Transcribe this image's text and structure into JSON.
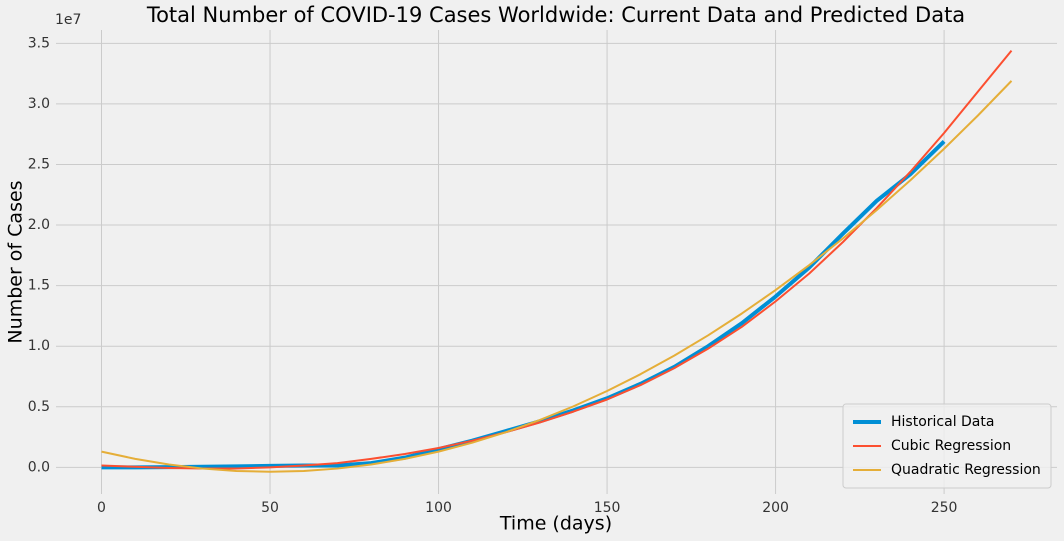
{
  "chart_data": {
    "type": "line",
    "title": "Total Number of COVID-19 Cases Worldwide: Current Data and Predicted Data",
    "x_label": "Time (days)",
    "y_label": "Number of Cases",
    "y_offset_label": "1e7",
    "x": [
      0,
      10,
      20,
      30,
      40,
      50,
      60,
      70,
      80,
      90,
      100,
      110,
      120,
      130,
      140,
      150,
      160,
      170,
      180,
      190,
      200,
      210,
      220,
      230,
      240,
      250,
      260,
      270
    ],
    "series": [
      {
        "name": "Historical Data",
        "color": "#008fd5",
        "width": 4,
        "values": [
          0,
          0,
          20000,
          50000,
          80000,
          120000,
          150000,
          150000,
          350000,
          800000,
          1500000,
          2200000,
          3000000,
          3800000,
          4700000,
          5700000,
          6900000,
          8300000,
          10000000,
          11900000,
          14100000,
          16500000,
          19300000,
          22000000,
          24200000,
          26900000,
          null,
          null
        ]
      },
      {
        "name": "Cubic Regression",
        "color": "#fc4f30",
        "width": 2,
        "values": [
          150000,
          50000,
          -50000,
          -100000,
          -100000,
          0,
          150000,
          350000,
          700000,
          1100000,
          1600000,
          2200000,
          2900000,
          3700000,
          4600000,
          5600000,
          6800000,
          8200000,
          9800000,
          11600000,
          13700000,
          16000000,
          18600000,
          21400000,
          24400000,
          27600000,
          31000000,
          34400000
        ]
      },
      {
        "name": "Quadratic Regression",
        "color": "#e5ae38",
        "width": 2,
        "values": [
          1300000,
          700000,
          233000,
          -100000,
          -300000,
          -367000,
          -300000,
          -100000,
          233000,
          700000,
          1300000,
          2033000,
          2900000,
          3900000,
          5033000,
          6300000,
          7700000,
          9233000,
          10900000,
          12700000,
          14633000,
          16700000,
          18900000,
          21233000,
          23700000,
          26300000,
          29033000,
          31900000
        ]
      }
    ],
    "xlim": [
      -13.5,
      283.5
    ],
    "xticks": [
      0,
      50,
      100,
      150,
      200,
      250
    ],
    "ylim": [
      -2200000,
      36100000
    ],
    "yticks": [
      {
        "value": 0,
        "label": "0.0"
      },
      {
        "value": 5000000,
        "label": "0.5"
      },
      {
        "value": 10000000,
        "label": "1.0"
      },
      {
        "value": 15000000,
        "label": "1.5"
      },
      {
        "value": 20000000,
        "label": "2.0"
      },
      {
        "value": 25000000,
        "label": "2.5"
      },
      {
        "value": 30000000,
        "label": "3.0"
      },
      {
        "value": 35000000,
        "label": "3.5"
      }
    ],
    "grid": true,
    "legend": "lower right"
  }
}
